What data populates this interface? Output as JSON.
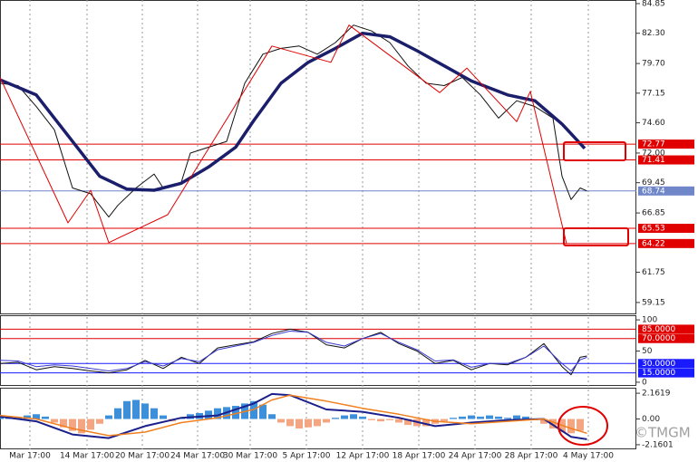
{
  "chart_data": [
    {
      "type": "line",
      "xlim": [
        0,
        140.4
      ],
      "ylim": [
        58.21,
        85.16
      ],
      "yticks": [
        84.85,
        {
          "value": 82.3,
          "label": "82.30"
        },
        {
          "value": 79.7,
          "label": "79.70"
        },
        77.15,
        {
          "value": 74.6,
          "label": "74.60"
        },
        {
          "value": 72,
          "label": "72.00"
        },
        69.45,
        66.85,
        61.75,
        59.15
      ],
      "levels": [
        {
          "value": 72.77,
          "color": "#e00000"
        },
        {
          "value": 71.41,
          "color": "#e00000"
        },
        {
          "value": 68.74,
          "color": "#6f86c9"
        },
        {
          "value": 65.53,
          "color": "#e00000"
        },
        {
          "value": 64.22,
          "color": "#e00000"
        }
      ],
      "series": [
        {
          "color": "#111111",
          "width": 1,
          "x": [
            0,
            4,
            8,
            12,
            16,
            20,
            24,
            26,
            30,
            34,
            36,
            40,
            42,
            46,
            50,
            54,
            58,
            62,
            66,
            70,
            74,
            78,
            82,
            86,
            90,
            94,
            98,
            102,
            106,
            110,
            114,
            118,
            122,
            124,
            126,
            128,
            129.5
          ],
          "values": [
            78.0,
            77.8,
            76.0,
            74.0,
            69.0,
            68.5,
            66.5,
            67.5,
            69.0,
            70.2,
            69.0,
            69.5,
            72.0,
            72.5,
            73.0,
            78.0,
            80.5,
            81.0,
            81.2,
            80.5,
            81.5,
            83.0,
            82.5,
            81.5,
            79.5,
            78.0,
            77.8,
            78.5,
            77.0,
            75.0,
            76.5,
            76.0,
            75.0,
            70.0,
            68.0,
            69.0,
            68.74
          ]
        },
        {
          "color": "#1b1f6b",
          "width": 3.5,
          "x": [
            0,
            8,
            16,
            22,
            28,
            34,
            40,
            46,
            52,
            56,
            62,
            68,
            74,
            80,
            86,
            92,
            98,
            104,
            112,
            118,
            124,
            129
          ],
          "values": [
            78.3,
            77.0,
            73.0,
            70.0,
            68.9,
            68.8,
            69.4,
            70.8,
            72.5,
            74.8,
            78.0,
            79.8,
            81.0,
            82.3,
            82.0,
            80.8,
            79.5,
            78.2,
            77.0,
            76.5,
            74.5,
            72.4
          ]
        },
        {
          "color": "#e00000",
          "width": 1,
          "x": [
            0,
            15,
            20,
            24,
            37,
            60,
            73,
            77,
            97,
            103,
            114,
            117,
            125
          ],
          "values": [
            78.5,
            66.0,
            68.8,
            64.3,
            66.7,
            81.2,
            79.8,
            83.0,
            77.2,
            79.3,
            74.7,
            77.3,
            64.2
          ]
        }
      ]
    },
    {
      "type": "line",
      "xlim": [
        0,
        140.4
      ],
      "ylim": [
        -5.9,
        107.4
      ],
      "yticks": [
        100,
        50,
        0
      ],
      "levels": [
        {
          "value": 85,
          "label": "85.0000",
          "color": "#e00000"
        },
        {
          "value": 70,
          "label": "70.0000",
          "color": "#e00000"
        },
        {
          "value": 30,
          "label": "30.0000",
          "color": "#1a1aff"
        },
        {
          "value": 15,
          "label": "15.0000",
          "color": "#1a1aff"
        }
      ],
      "series": [
        {
          "color": "#111111",
          "width": 1,
          "x": [
            0,
            4,
            8,
            12,
            16,
            20,
            24,
            28,
            32,
            36,
            40,
            44,
            48,
            52,
            56,
            60,
            64,
            68,
            72,
            76,
            80,
            84,
            88,
            92,
            96,
            100,
            104,
            108,
            112,
            116,
            120,
            124,
            126,
            128,
            129.5
          ],
          "values": [
            30,
            32,
            20,
            25,
            22,
            18,
            15,
            20,
            35,
            22,
            40,
            30,
            55,
            60,
            65,
            78,
            85,
            80,
            60,
            55,
            70,
            80,
            62,
            50,
            30,
            35,
            20,
            30,
            28,
            40,
            62,
            25,
            12,
            40,
            42
          ]
        },
        {
          "color": "#3a3ad0",
          "width": 1,
          "x": [
            0,
            4,
            8,
            12,
            16,
            20,
            24,
            28,
            32,
            36,
            40,
            44,
            48,
            52,
            56,
            60,
            64,
            68,
            72,
            76,
            80,
            84,
            88,
            92,
            96,
            100,
            104,
            108,
            112,
            116,
            120,
            124,
            126,
            128,
            129.5
          ],
          "values": [
            35,
            34,
            25,
            28,
            26,
            22,
            18,
            22,
            33,
            26,
            38,
            33,
            52,
            58,
            64,
            75,
            82,
            80,
            64,
            58,
            70,
            78,
            64,
            52,
            34,
            36,
            24,
            30,
            30,
            40,
            58,
            30,
            18,
            36,
            40
          ]
        }
      ]
    },
    {
      "type": "macd",
      "xlim": [
        0,
        140.4
      ],
      "ylim": [
        -2.546,
        2.625
      ],
      "yticks": [
        2.1619,
        {
          "value": 0,
          "label": "0.00"
        },
        -2.1601
      ],
      "xticks": [
        {
          "value": 6.6,
          "label": "Mar 17:00"
        },
        {
          "value": 19.2,
          "label": "14 Mar 17:00"
        },
        {
          "value": 31.4,
          "label": "20 Mar 17:00"
        },
        {
          "value": 43.6,
          "label": "24 Mar 17:00"
        },
        {
          "value": 55.2,
          "label": "30 Mar 17:00"
        },
        {
          "value": 67.6,
          "label": "5 Apr 17:00"
        },
        {
          "value": 80,
          "label": "12 Apr 17:00"
        },
        {
          "value": 92.4,
          "label": "18 Apr 17:00"
        },
        {
          "value": 104.8,
          "label": "24 Apr 17:00"
        },
        {
          "value": 117.2,
          "label": "28 Apr 17:00"
        },
        {
          "value": 129.8,
          "label": "4 May 17:00"
        }
      ],
      "histogram": {
        "positive_color": "#3d8fd9",
        "negative_color": "#f4a582",
        "x": [
          0,
          2,
          4,
          6,
          8,
          10,
          12,
          14,
          16,
          18,
          20,
          22,
          24,
          26,
          28,
          30,
          32,
          34,
          36,
          38,
          40,
          42,
          44,
          46,
          48,
          50,
          52,
          54,
          56,
          58,
          60,
          62,
          64,
          66,
          68,
          70,
          72,
          74,
          76,
          78,
          80,
          82,
          84,
          86,
          88,
          90,
          92,
          94,
          96,
          98,
          100,
          102,
          104,
          106,
          108,
          110,
          112,
          114,
          116,
          118,
          120,
          122,
          124,
          126,
          128
        ],
        "values": [
          0.3,
          0.2,
          0.1,
          0.3,
          0.4,
          0.2,
          -0.3,
          -0.7,
          -1.0,
          -1.2,
          -0.9,
          -0.4,
          0.3,
          0.9,
          1.5,
          1.6,
          1.3,
          0.9,
          0.3,
          -0.2,
          0.1,
          0.4,
          0.5,
          0.7,
          0.9,
          1.0,
          1.1,
          1.3,
          1.5,
          1.2,
          0.4,
          -0.3,
          -0.6,
          -0.8,
          -0.7,
          -0.6,
          -0.3,
          0.1,
          0.3,
          0.4,
          0.2,
          -0.1,
          -0.2,
          -0.1,
          -0.3,
          -0.5,
          -0.6,
          -0.6,
          -0.4,
          -0.2,
          0.1,
          0.2,
          0.3,
          0.2,
          0.3,
          0.2,
          0.1,
          0.3,
          0.2,
          -0.1,
          -0.4,
          -0.8,
          -1.1,
          -1.2,
          -1.0
        ]
      },
      "series": [
        {
          "color": "#1b1f8b",
          "width": 2,
          "x": [
            0,
            8,
            16,
            24,
            32,
            40,
            48,
            56,
            60,
            64,
            72,
            80,
            88,
            96,
            104,
            112,
            120,
            126,
            129.5
          ],
          "values": [
            0.2,
            -0.2,
            -1.3,
            -1.6,
            -0.6,
            0.1,
            0.3,
            1.3,
            2.1,
            2.0,
            0.8,
            0.6,
            0.1,
            -0.6,
            -0.3,
            -0.1,
            0.0,
            -1.5,
            -1.7
          ]
        },
        {
          "color": "#f08020",
          "width": 1.5,
          "x": [
            0,
            8,
            16,
            24,
            32,
            40,
            48,
            56,
            60,
            64,
            72,
            80,
            88,
            96,
            104,
            112,
            120,
            126,
            129.5
          ],
          "values": [
            0.3,
            0.0,
            -0.8,
            -1.4,
            -1.1,
            -0.3,
            0.1,
            0.8,
            1.6,
            2.0,
            1.5,
            0.9,
            0.4,
            -0.2,
            -0.4,
            -0.2,
            0.0,
            -0.8,
            -1.2
          ]
        }
      ]
    }
  ],
  "watermark": "©TMGM"
}
